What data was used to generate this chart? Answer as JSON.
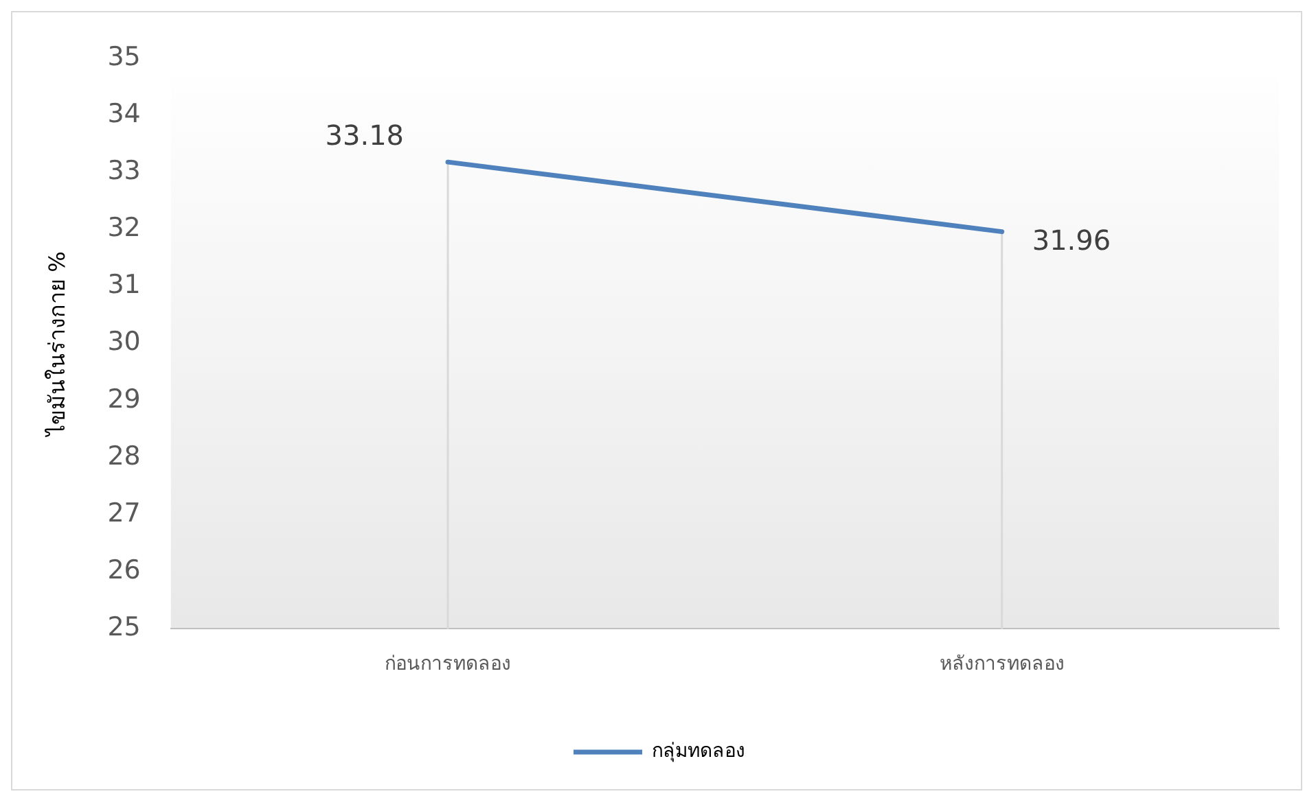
{
  "chart_data": {
    "type": "line",
    "ylabel": "ไขมันในร่างกาย %",
    "categories": [
      "ก่อนการทดลอง",
      "หลังการทดลอง"
    ],
    "series": [
      {
        "name": "กลุ่มทดลอง",
        "color": "#4f81bd",
        "values": [
          33.18,
          31.96
        ]
      }
    ],
    "ylim": [
      25,
      35
    ],
    "yticks": [
      25,
      26,
      27,
      28,
      29,
      30,
      31,
      32,
      33,
      34,
      35
    ],
    "grid": "x",
    "legend": "bottom",
    "data_labels": true,
    "marker": "none",
    "line_style": "solid"
  }
}
